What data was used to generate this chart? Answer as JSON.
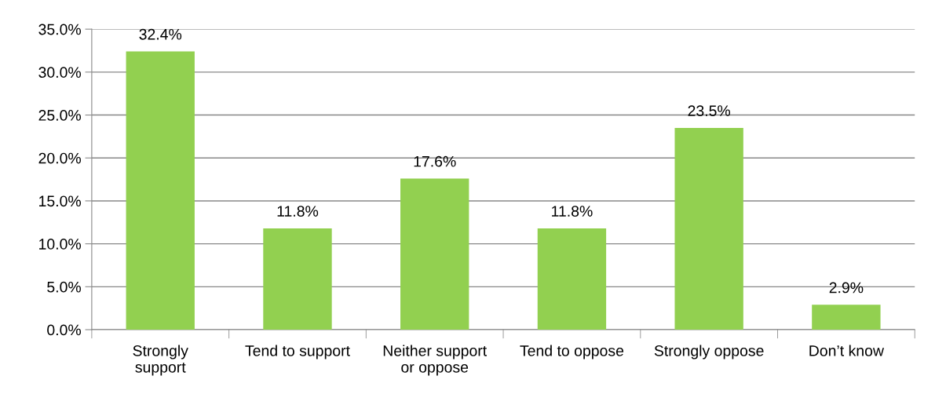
{
  "chart_data": {
    "type": "bar",
    "categories": [
      "Strongly\nsupport",
      "Tend to support",
      "Neither support\nor oppose",
      "Tend to oppose",
      "Strongly oppose",
      "Don’t know"
    ],
    "values": [
      32.4,
      11.8,
      17.6,
      11.8,
      23.5,
      2.9
    ],
    "value_labels": [
      "32.4%",
      "11.8%",
      "17.6%",
      "11.8%",
      "23.5%",
      "2.9%"
    ],
    "color": "#92d050",
    "ylim": [
      0,
      35
    ],
    "yticks": [
      {
        "value": 0,
        "label": "0.0%"
      },
      {
        "value": 5,
        "label": "5.0%"
      },
      {
        "value": 10,
        "label": "10.0%"
      },
      {
        "value": 15,
        "label": "15.0%"
      },
      {
        "value": 20,
        "label": "20.0%"
      },
      {
        "value": 25,
        "label": "25.0%"
      },
      {
        "value": 30,
        "label": "30.0%"
      },
      {
        "value": 35,
        "label": "35.0%"
      }
    ],
    "grid": "y",
    "legend": false
  }
}
